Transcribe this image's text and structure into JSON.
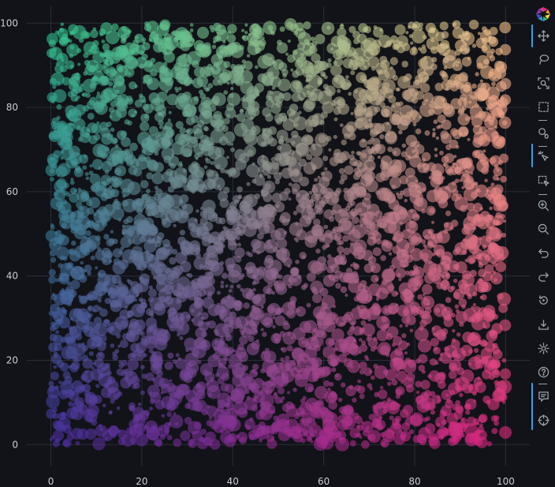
{
  "chart_data": {
    "type": "scatter",
    "title": "",
    "xlabel": "",
    "ylabel": "",
    "xlim": [
      -5.3,
      105.3
    ],
    "ylim": [
      -5.0,
      104.0
    ],
    "xticks": [
      "0",
      "20",
      "40",
      "60",
      "80",
      "100"
    ],
    "yticks": [
      "0",
      "20",
      "40",
      "60",
      "80",
      "100"
    ],
    "grid": true,
    "legend": "none",
    "series": [
      {
        "n_points": 4000,
        "x_range": [
          0,
          100
        ],
        "y_range": [
          0,
          100
        ],
        "size": "variable",
        "opacity": 0.6,
        "color_corners": {
          "bottom_left": "#4a2fa3",
          "bottom_right": "#e0267c",
          "top_left": "#2fc78f",
          "top_right": "#f4c38a"
        }
      }
    ]
  },
  "toolbar": {
    "tools": [
      {
        "name": "pan",
        "icon": "move-icon",
        "active": true
      },
      {
        "name": "lasso",
        "icon": "lasso-icon",
        "active": false
      },
      {
        "name": "box-zoom",
        "icon": "box-zoom-icon",
        "active": false
      },
      {
        "name": "box-select",
        "icon": "box-select-icon",
        "active": false
      },
      {
        "name": "wheel-zoom",
        "icon": "wheel-zoom-icon",
        "active": false
      },
      {
        "name": "tap",
        "icon": "tap-icon",
        "active": true
      },
      {
        "name": "box-edit",
        "icon": "box-edit-icon",
        "active": false
      },
      {
        "name": "zoom-in",
        "icon": "zoom-in-icon",
        "active": false
      },
      {
        "name": "zoom-out",
        "icon": "zoom-out-icon",
        "active": false
      },
      {
        "name": "undo",
        "icon": "undo-icon",
        "active": false
      },
      {
        "name": "redo",
        "icon": "redo-icon",
        "active": false
      },
      {
        "name": "reset",
        "icon": "reset-icon",
        "active": false
      },
      {
        "name": "save",
        "icon": "save-icon",
        "active": false
      },
      {
        "name": "settings",
        "icon": "gear-icon",
        "active": false
      },
      {
        "name": "help",
        "icon": "help-icon",
        "active": false
      },
      {
        "name": "hover",
        "icon": "hover-icon",
        "active": true
      },
      {
        "name": "crosshair",
        "icon": "crosshair-icon",
        "active": true
      }
    ]
  }
}
